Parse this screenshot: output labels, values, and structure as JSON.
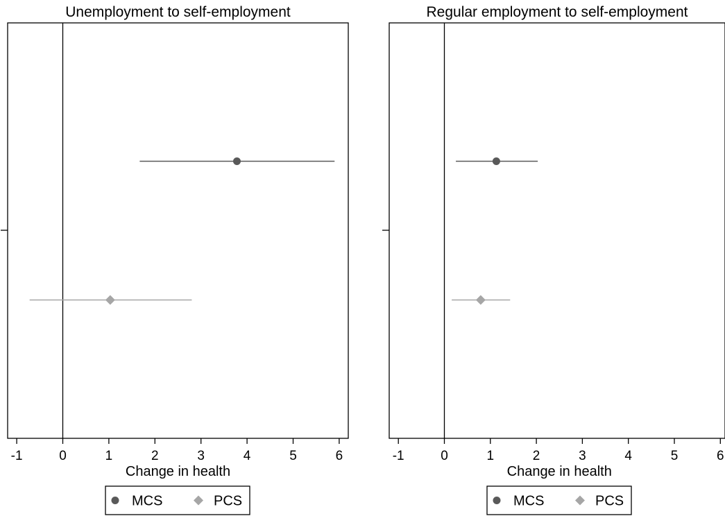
{
  "chart_data": [
    {
      "type": "scatter",
      "title": "Unemployment to self-employment",
      "xlabel": "Change in health",
      "ylabel": "",
      "xlim": [
        -1.2,
        6.2
      ],
      "xticks": [
        -1,
        0,
        1,
        2,
        3,
        4,
        5,
        6
      ],
      "reference_line_x": 0,
      "grid": false,
      "legend_position": "bottom",
      "series": [
        {
          "name": "MCS",
          "marker": "circle",
          "color": "#595959",
          "estimate": 3.78,
          "ci_low": 1.67,
          "ci_high": 5.9,
          "row": 1
        },
        {
          "name": "PCS",
          "marker": "diamond",
          "color": "#a6a6a6",
          "estimate": 1.03,
          "ci_low": -0.72,
          "ci_high": 2.8,
          "row": 2
        }
      ]
    },
    {
      "type": "scatter",
      "title": "Regular employment to self-employment",
      "xlabel": "Change in health",
      "ylabel": "",
      "xlim": [
        -1.2,
        6.2
      ],
      "xticks": [
        -1,
        0,
        1,
        2,
        3,
        4,
        5,
        6
      ],
      "reference_line_x": 0,
      "grid": false,
      "legend_position": "bottom",
      "series": [
        {
          "name": "MCS",
          "marker": "circle",
          "color": "#595959",
          "estimate": 1.13,
          "ci_low": 0.25,
          "ci_high": 2.03,
          "row": 1
        },
        {
          "name": "PCS",
          "marker": "diamond",
          "color": "#a6a6a6",
          "estimate": 0.79,
          "ci_low": 0.16,
          "ci_high": 1.43,
          "row": 2
        }
      ]
    }
  ]
}
